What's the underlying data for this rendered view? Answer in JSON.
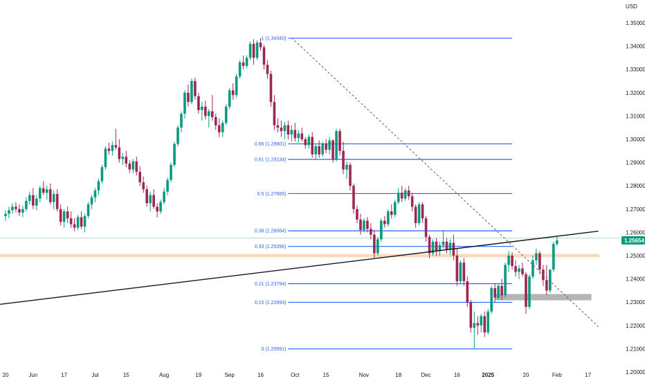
{
  "chart_data": {
    "type": "candlestick",
    "currency_label": "USD",
    "current_price": "1.25654",
    "colors": {
      "up": "#089981",
      "down": "#9c2755",
      "fib": "#2962ff",
      "trendline": "#131722",
      "resistance_band": "#fcd9b8",
      "support_zone": "#a8a8a8",
      "price_tag": "#089981"
    },
    "y_axis": {
      "min": 1.2,
      "max": 1.35,
      "ticks": [
        "1.35000",
        "1.34000",
        "1.33000",
        "1.32000",
        "1.31000",
        "1.30000",
        "1.29000",
        "1.28000",
        "1.27000",
        "1.26000",
        "1.25000",
        "1.24000",
        "1.23000",
        "1.22000",
        "1.21000",
        "1.20000"
      ]
    },
    "x_axis": {
      "ticks": [
        {
          "label": "20",
          "x": 0,
          "bold": false
        },
        {
          "label": "Jun",
          "x": 8,
          "bold": false
        },
        {
          "label": "17",
          "x": 17,
          "bold": false
        },
        {
          "label": "Jul",
          "x": 26,
          "bold": false
        },
        {
          "label": "15",
          "x": 35,
          "bold": false
        },
        {
          "label": "Aug",
          "x": 46,
          "bold": false
        },
        {
          "label": "19",
          "x": 56,
          "bold": false
        },
        {
          "label": "Sep",
          "x": 65,
          "bold": false
        },
        {
          "label": "16",
          "x": 74,
          "bold": false
        },
        {
          "label": "Oct",
          "x": 84,
          "bold": false
        },
        {
          "label": "15",
          "x": 93,
          "bold": false
        },
        {
          "label": "Nov",
          "x": 104,
          "bold": false
        },
        {
          "label": "18",
          "x": 114,
          "bold": false
        },
        {
          "label": "Dec",
          "x": 122,
          "bold": false
        },
        {
          "label": "16",
          "x": 131,
          "bold": false
        },
        {
          "label": "2025",
          "x": 140,
          "bold": true
        },
        {
          "label": "20",
          "x": 151,
          "bold": false
        },
        {
          "label": "Feb",
          "x": 160,
          "bold": false
        },
        {
          "label": "17",
          "x": 169,
          "bold": false
        }
      ]
    },
    "fib_levels": [
      {
        "label": "1 (1.34340)",
        "price": 1.3434
      },
      {
        "label": "0.66 (1.29801)",
        "price": 1.29801
      },
      {
        "label": "0.61 (1.29134)",
        "price": 1.29134
      },
      {
        "label": "0.5 (1.27665)",
        "price": 1.27665
      },
      {
        "label": "0.38 (1.26064)",
        "price": 1.26064
      },
      {
        "label": "0.33 (1.25396)",
        "price": 1.25396
      },
      {
        "label": "0.21 (1.23794)",
        "price": 1.23794
      },
      {
        "label": "0.15 (1.22993)",
        "price": 1.22993
      },
      {
        "label": "0 (1.20991)",
        "price": 1.20991
      }
    ],
    "fib_range": {
      "x_start": 82,
      "x_end": 147
    },
    "trendline": [
      {
        "x": -2,
        "price": 1.229
      },
      {
        "x": 172,
        "price": 1.2605
      }
    ],
    "dashed_trendline": [
      {
        "x": 83,
        "price": 1.3436
      },
      {
        "x": 172,
        "price": 1.2195
      }
    ],
    "horizontal_line": {
      "price": 1.2575
    },
    "resistance_band": {
      "price_low": 1.2493,
      "price_high": 1.2507
    },
    "support_zone": {
      "x_start": 142,
      "x_end": 170,
      "price_low": 1.2308,
      "price_high": 1.2335
    },
    "candles": [
      {
        "o": 1.267,
        "h": 1.2695,
        "l": 1.265,
        "c": 1.268
      },
      {
        "o": 1.268,
        "h": 1.271,
        "l": 1.266,
        "c": 1.2695
      },
      {
        "o": 1.2695,
        "h": 1.2725,
        "l": 1.268,
        "c": 1.271
      },
      {
        "o": 1.271,
        "h": 1.273,
        "l": 1.2685,
        "c": 1.27
      },
      {
        "o": 1.27,
        "h": 1.272,
        "l": 1.267,
        "c": 1.2685
      },
      {
        "o": 1.2685,
        "h": 1.2715,
        "l": 1.2665,
        "c": 1.27
      },
      {
        "o": 1.27,
        "h": 1.275,
        "l": 1.269,
        "c": 1.2735
      },
      {
        "o": 1.2735,
        "h": 1.2775,
        "l": 1.272,
        "c": 1.276
      },
      {
        "o": 1.276,
        "h": 1.279,
        "l": 1.27,
        "c": 1.2715
      },
      {
        "o": 1.2715,
        "h": 1.276,
        "l": 1.2695,
        "c": 1.2745
      },
      {
        "o": 1.2745,
        "h": 1.28,
        "l": 1.273,
        "c": 1.279
      },
      {
        "o": 1.279,
        "h": 1.282,
        "l": 1.276,
        "c": 1.277
      },
      {
        "o": 1.277,
        "h": 1.28,
        "l": 1.274,
        "c": 1.2785
      },
      {
        "o": 1.2785,
        "h": 1.281,
        "l": 1.272,
        "c": 1.273
      },
      {
        "o": 1.273,
        "h": 1.278,
        "l": 1.27,
        "c": 1.2765
      },
      {
        "o": 1.2765,
        "h": 1.2785,
        "l": 1.269,
        "c": 1.27
      },
      {
        "o": 1.27,
        "h": 1.272,
        "l": 1.263,
        "c": 1.2645
      },
      {
        "o": 1.2645,
        "h": 1.27,
        "l": 1.262,
        "c": 1.269
      },
      {
        "o": 1.269,
        "h": 1.271,
        "l": 1.264,
        "c": 1.266
      },
      {
        "o": 1.266,
        "h": 1.269,
        "l": 1.262,
        "c": 1.2635
      },
      {
        "o": 1.2635,
        "h": 1.266,
        "l": 1.2605,
        "c": 1.262
      },
      {
        "o": 1.262,
        "h": 1.2675,
        "l": 1.261,
        "c": 1.2665
      },
      {
        "o": 1.2665,
        "h": 1.269,
        "l": 1.2615,
        "c": 1.2625
      },
      {
        "o": 1.2625,
        "h": 1.268,
        "l": 1.26,
        "c": 1.267
      },
      {
        "o": 1.267,
        "h": 1.273,
        "l": 1.266,
        "c": 1.272
      },
      {
        "o": 1.272,
        "h": 1.276,
        "l": 1.27,
        "c": 1.275
      },
      {
        "o": 1.275,
        "h": 1.279,
        "l": 1.273,
        "c": 1.278
      },
      {
        "o": 1.278,
        "h": 1.283,
        "l": 1.276,
        "c": 1.282
      },
      {
        "o": 1.282,
        "h": 1.289,
        "l": 1.281,
        "c": 1.288
      },
      {
        "o": 1.288,
        "h": 1.297,
        "l": 1.287,
        "c": 1.296
      },
      {
        "o": 1.296,
        "h": 1.2985,
        "l": 1.2935,
        "c": 1.295
      },
      {
        "o": 1.295,
        "h": 1.299,
        "l": 1.293,
        "c": 1.2975
      },
      {
        "o": 1.2975,
        "h": 1.3045,
        "l": 1.2955,
        "c": 1.2965
      },
      {
        "o": 1.2965,
        "h": 1.3,
        "l": 1.29,
        "c": 1.2915
      },
      {
        "o": 1.2915,
        "h": 1.294,
        "l": 1.289,
        "c": 1.2925
      },
      {
        "o": 1.2925,
        "h": 1.295,
        "l": 1.288,
        "c": 1.2895
      },
      {
        "o": 1.2895,
        "h": 1.291,
        "l": 1.2855,
        "c": 1.287
      },
      {
        "o": 1.287,
        "h": 1.2915,
        "l": 1.2855,
        "c": 1.2905
      },
      {
        "o": 1.2905,
        "h": 1.2925,
        "l": 1.2845,
        "c": 1.286
      },
      {
        "o": 1.286,
        "h": 1.2885,
        "l": 1.28,
        "c": 1.2815
      },
      {
        "o": 1.2815,
        "h": 1.284,
        "l": 1.277,
        "c": 1.2785
      },
      {
        "o": 1.2785,
        "h": 1.28,
        "l": 1.271,
        "c": 1.2725
      },
      {
        "o": 1.2725,
        "h": 1.2775,
        "l": 1.269,
        "c": 1.276
      },
      {
        "o": 1.276,
        "h": 1.2785,
        "l": 1.27,
        "c": 1.271
      },
      {
        "o": 1.271,
        "h": 1.2725,
        "l": 1.2665,
        "c": 1.269
      },
      {
        "o": 1.269,
        "h": 1.274,
        "l": 1.268,
        "c": 1.273
      },
      {
        "o": 1.273,
        "h": 1.279,
        "l": 1.272,
        "c": 1.2775
      },
      {
        "o": 1.2775,
        "h": 1.2835,
        "l": 1.276,
        "c": 1.2825
      },
      {
        "o": 1.2825,
        "h": 1.29,
        "l": 1.2815,
        "c": 1.289
      },
      {
        "o": 1.289,
        "h": 1.299,
        "l": 1.288,
        "c": 1.298
      },
      {
        "o": 1.298,
        "h": 1.306,
        "l": 1.297,
        "c": 1.305
      },
      {
        "o": 1.305,
        "h": 1.312,
        "l": 1.303,
        "c": 1.311
      },
      {
        "o": 1.311,
        "h": 1.321,
        "l": 1.309,
        "c": 1.32
      },
      {
        "o": 1.32,
        "h": 1.3235,
        "l": 1.314,
        "c": 1.316
      },
      {
        "o": 1.316,
        "h": 1.326,
        "l": 1.315,
        "c": 1.325
      },
      {
        "o": 1.325,
        "h": 1.3265,
        "l": 1.317,
        "c": 1.3185
      },
      {
        "o": 1.3185,
        "h": 1.32,
        "l": 1.311,
        "c": 1.3125
      },
      {
        "o": 1.3125,
        "h": 1.316,
        "l": 1.308,
        "c": 1.314
      },
      {
        "o": 1.314,
        "h": 1.3165,
        "l": 1.3085,
        "c": 1.31
      },
      {
        "o": 1.31,
        "h": 1.313,
        "l": 1.305,
        "c": 1.312
      },
      {
        "o": 1.312,
        "h": 1.319,
        "l": 1.308,
        "c": 1.3095
      },
      {
        "o": 1.3095,
        "h": 1.311,
        "l": 1.304,
        "c": 1.306
      },
      {
        "o": 1.306,
        "h": 1.309,
        "l": 1.301,
        "c": 1.303
      },
      {
        "o": 1.303,
        "h": 1.308,
        "l": 1.301,
        "c": 1.307
      },
      {
        "o": 1.307,
        "h": 1.315,
        "l": 1.306,
        "c": 1.314
      },
      {
        "o": 1.314,
        "h": 1.322,
        "l": 1.313,
        "c": 1.321
      },
      {
        "o": 1.321,
        "h": 1.324,
        "l": 1.317,
        "c": 1.319
      },
      {
        "o": 1.319,
        "h": 1.328,
        "l": 1.318,
        "c": 1.327
      },
      {
        "o": 1.327,
        "h": 1.334,
        "l": 1.326,
        "c": 1.333
      },
      {
        "o": 1.333,
        "h": 1.336,
        "l": 1.33,
        "c": 1.3315
      },
      {
        "o": 1.3315,
        "h": 1.336,
        "l": 1.3305,
        "c": 1.335
      },
      {
        "o": 1.335,
        "h": 1.342,
        "l": 1.334,
        "c": 1.341
      },
      {
        "o": 1.341,
        "h": 1.343,
        "l": 1.332,
        "c": 1.335
      },
      {
        "o": 1.335,
        "h": 1.3425,
        "l": 1.334,
        "c": 1.3415
      },
      {
        "o": 1.3415,
        "h": 1.3434,
        "l": 1.338,
        "c": 1.3395
      },
      {
        "o": 1.3395,
        "h": 1.3405,
        "l": 1.33,
        "c": 1.332
      },
      {
        "o": 1.332,
        "h": 1.334,
        "l": 1.326,
        "c": 1.328
      },
      {
        "o": 1.328,
        "h": 1.3295,
        "l": 1.314,
        "c": 1.316
      },
      {
        "o": 1.316,
        "h": 1.319,
        "l": 1.304,
        "c": 1.306
      },
      {
        "o": 1.306,
        "h": 1.309,
        "l": 1.303,
        "c": 1.305
      },
      {
        "o": 1.305,
        "h": 1.308,
        "l": 1.301,
        "c": 1.3035
      },
      {
        "o": 1.3035,
        "h": 1.3075,
        "l": 1.3,
        "c": 1.306
      },
      {
        "o": 1.306,
        "h": 1.308,
        "l": 1.3,
        "c": 1.302
      },
      {
        "o": 1.302,
        "h": 1.306,
        "l": 1.299,
        "c": 1.304
      },
      {
        "o": 1.304,
        "h": 1.307,
        "l": 1.299,
        "c": 1.3005
      },
      {
        "o": 1.3005,
        "h": 1.304,
        "l": 1.2985,
        "c": 1.3025
      },
      {
        "o": 1.3025,
        "h": 1.305,
        "l": 1.299,
        "c": 1.3
      },
      {
        "o": 1.3,
        "h": 1.301,
        "l": 1.296,
        "c": 1.2975
      },
      {
        "o": 1.2975,
        "h": 1.302,
        "l": 1.296,
        "c": 1.301
      },
      {
        "o": 1.301,
        "h": 1.303,
        "l": 1.292,
        "c": 1.2935
      },
      {
        "o": 1.2935,
        "h": 1.298,
        "l": 1.291,
        "c": 1.297
      },
      {
        "o": 1.297,
        "h": 1.2995,
        "l": 1.292,
        "c": 1.2935
      },
      {
        "o": 1.2935,
        "h": 1.299,
        "l": 1.2925,
        "c": 1.298
      },
      {
        "o": 1.298,
        "h": 1.3,
        "l": 1.294,
        "c": 1.2955
      },
      {
        "o": 1.2955,
        "h": 1.301,
        "l": 1.2935,
        "c": 1.2995
      },
      {
        "o": 1.2995,
        "h": 1.3,
        "l": 1.29,
        "c": 1.2915
      },
      {
        "o": 1.2915,
        "h": 1.3045,
        "l": 1.2905,
        "c": 1.3035
      },
      {
        "o": 1.3035,
        "h": 1.3045,
        "l": 1.293,
        "c": 1.295
      },
      {
        "o": 1.295,
        "h": 1.299,
        "l": 1.285,
        "c": 1.287
      },
      {
        "o": 1.287,
        "h": 1.2905,
        "l": 1.283,
        "c": 1.289
      },
      {
        "o": 1.289,
        "h": 1.29,
        "l": 1.278,
        "c": 1.28
      },
      {
        "o": 1.28,
        "h": 1.281,
        "l": 1.268,
        "c": 1.27
      },
      {
        "o": 1.27,
        "h": 1.2715,
        "l": 1.264,
        "c": 1.2655
      },
      {
        "o": 1.2655,
        "h": 1.268,
        "l": 1.259,
        "c": 1.261
      },
      {
        "o": 1.261,
        "h": 1.266,
        "l": 1.26,
        "c": 1.265
      },
      {
        "o": 1.265,
        "h": 1.2665,
        "l": 1.26,
        "c": 1.2615
      },
      {
        "o": 1.2615,
        "h": 1.264,
        "l": 1.257,
        "c": 1.259
      },
      {
        "o": 1.259,
        "h": 1.261,
        "l": 1.249,
        "c": 1.251
      },
      {
        "o": 1.251,
        "h": 1.258,
        "l": 1.25,
        "c": 1.257
      },
      {
        "o": 1.257,
        "h": 1.266,
        "l": 1.256,
        "c": 1.265
      },
      {
        "o": 1.265,
        "h": 1.267,
        "l": 1.262,
        "c": 1.2635
      },
      {
        "o": 1.2635,
        "h": 1.27,
        "l": 1.2625,
        "c": 1.269
      },
      {
        "o": 1.269,
        "h": 1.272,
        "l": 1.266,
        "c": 1.2675
      },
      {
        "o": 1.2675,
        "h": 1.274,
        "l": 1.2665,
        "c": 1.273
      },
      {
        "o": 1.273,
        "h": 1.279,
        "l": 1.272,
        "c": 1.277
      },
      {
        "o": 1.277,
        "h": 1.28,
        "l": 1.273,
        "c": 1.2745
      },
      {
        "o": 1.2745,
        "h": 1.279,
        "l": 1.2735,
        "c": 1.278
      },
      {
        "o": 1.278,
        "h": 1.28,
        "l": 1.274,
        "c": 1.2755
      },
      {
        "o": 1.2755,
        "h": 1.277,
        "l": 1.269,
        "c": 1.271
      },
      {
        "o": 1.271,
        "h": 1.272,
        "l": 1.262,
        "c": 1.264
      },
      {
        "o": 1.264,
        "h": 1.273,
        "l": 1.263,
        "c": 1.272
      },
      {
        "o": 1.272,
        "h": 1.273,
        "l": 1.264,
        "c": 1.266
      },
      {
        "o": 1.266,
        "h": 1.267,
        "l": 1.256,
        "c": 1.258
      },
      {
        "o": 1.258,
        "h": 1.259,
        "l": 1.249,
        "c": 1.251
      },
      {
        "o": 1.251,
        "h": 1.257,
        "l": 1.25,
        "c": 1.256
      },
      {
        "o": 1.256,
        "h": 1.2575,
        "l": 1.25,
        "c": 1.252
      },
      {
        "o": 1.252,
        "h": 1.256,
        "l": 1.25,
        "c": 1.2545
      },
      {
        "o": 1.2545,
        "h": 1.261,
        "l": 1.253,
        "c": 1.256
      },
      {
        "o": 1.256,
        "h": 1.2575,
        "l": 1.251,
        "c": 1.2525
      },
      {
        "o": 1.2525,
        "h": 1.257,
        "l": 1.2505,
        "c": 1.2555
      },
      {
        "o": 1.2555,
        "h": 1.259,
        "l": 1.248,
        "c": 1.25
      },
      {
        "o": 1.25,
        "h": 1.253,
        "l": 1.237,
        "c": 1.239
      },
      {
        "o": 1.239,
        "h": 1.248,
        "l": 1.238,
        "c": 1.247
      },
      {
        "o": 1.247,
        "h": 1.249,
        "l": 1.237,
        "c": 1.239
      },
      {
        "o": 1.239,
        "h": 1.241,
        "l": 1.228,
        "c": 1.23
      },
      {
        "o": 1.23,
        "h": 1.231,
        "l": 1.217,
        "c": 1.219
      },
      {
        "o": 1.219,
        "h": 1.226,
        "l": 1.21,
        "c": 1.221
      },
      {
        "o": 1.221,
        "h": 1.224,
        "l": 1.216,
        "c": 1.22
      },
      {
        "o": 1.22,
        "h": 1.225,
        "l": 1.217,
        "c": 1.224
      },
      {
        "o": 1.224,
        "h": 1.226,
        "l": 1.215,
        "c": 1.217
      },
      {
        "o": 1.217,
        "h": 1.227,
        "l": 1.216,
        "c": 1.226
      },
      {
        "o": 1.226,
        "h": 1.237,
        "l": 1.225,
        "c": 1.236
      },
      {
        "o": 1.236,
        "h": 1.238,
        "l": 1.23,
        "c": 1.232
      },
      {
        "o": 1.232,
        "h": 1.238,
        "l": 1.231,
        "c": 1.237
      },
      {
        "o": 1.237,
        "h": 1.24,
        "l": 1.231,
        "c": 1.233
      },
      {
        "o": 1.233,
        "h": 1.247,
        "l": 1.232,
        "c": 1.246
      },
      {
        "o": 1.246,
        "h": 1.252,
        "l": 1.243,
        "c": 1.25
      },
      {
        "o": 1.25,
        "h": 1.2515,
        "l": 1.244,
        "c": 1.2455
      },
      {
        "o": 1.2455,
        "h": 1.248,
        "l": 1.241,
        "c": 1.243
      },
      {
        "o": 1.243,
        "h": 1.246,
        "l": 1.24,
        "c": 1.2445
      },
      {
        "o": 1.2445,
        "h": 1.247,
        "l": 1.241,
        "c": 1.242
      },
      {
        "o": 1.242,
        "h": 1.243,
        "l": 1.225,
        "c": 1.228
      },
      {
        "o": 1.228,
        "h": 1.242,
        "l": 1.227,
        "c": 1.241
      },
      {
        "o": 1.241,
        "h": 1.25,
        "l": 1.24,
        "c": 1.248
      },
      {
        "o": 1.248,
        "h": 1.253,
        "l": 1.246,
        "c": 1.251
      },
      {
        "o": 1.251,
        "h": 1.252,
        "l": 1.242,
        "c": 1.244
      },
      {
        "o": 1.244,
        "h": 1.246,
        "l": 1.237,
        "c": 1.2395
      },
      {
        "o": 1.2395,
        "h": 1.246,
        "l": 1.233,
        "c": 1.235
      },
      {
        "o": 1.235,
        "h": 1.244,
        "l": 1.234,
        "c": 1.244
      },
      {
        "o": 1.244,
        "h": 1.256,
        "l": 1.243,
        "c": 1.255
      },
      {
        "o": 1.255,
        "h": 1.258,
        "l": 1.254,
        "c": 1.2565
      }
    ]
  }
}
